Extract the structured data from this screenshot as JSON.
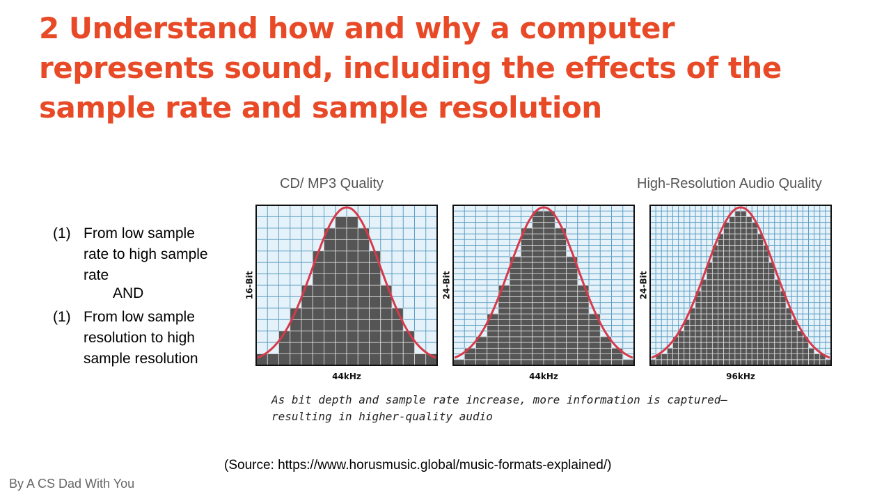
{
  "title_lines": [
    "2 Understand how and why a computer",
    "represents sound, including the effects of the",
    "sample rate and sample resolution"
  ],
  "list": {
    "items": [
      {
        "marker": "(1)",
        "text": "From low sample rate to high sample rate"
      },
      {
        "marker": "(1)",
        "text": "From low sample resolution to high sample resolution"
      }
    ],
    "connector": "AND"
  },
  "figure": {
    "headings": [
      "CD/ MP3 Quality",
      "High-Resolution Audio Quality"
    ],
    "panels": [
      {
        "y_label": "16-Bit",
        "x_label": "44kHz"
      },
      {
        "y_label": "24-Bit",
        "x_label": "44kHz"
      },
      {
        "y_label": "24-Bit",
        "x_label": "96kHz"
      }
    ],
    "caption_lines": [
      "As bit depth and sample rate increase, more information is captured—",
      "resulting in higher-quality audio"
    ]
  },
  "source": "(Source: https://www.horusmusic.global/music-formats-explained/)",
  "footer": "By A CS Dad With You"
}
